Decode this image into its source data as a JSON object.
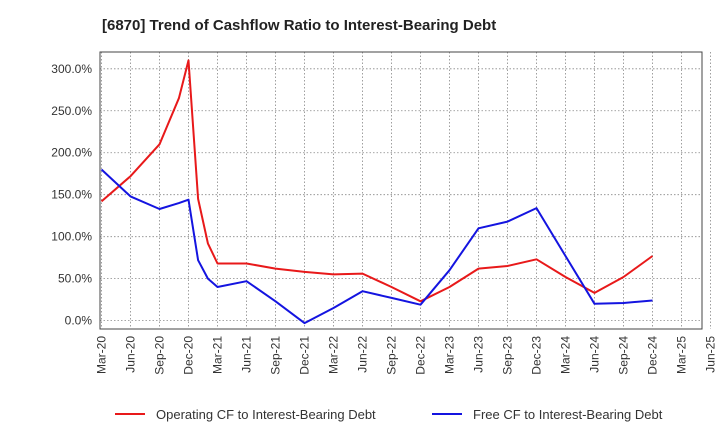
{
  "chart_data": {
    "type": "line",
    "title": "[6870]  Trend of Cashflow Ratio to Interest-Bearing Debt",
    "x_tick_labels": [
      "Mar-20",
      "Jun-20",
      "Sep-20",
      "Dec-20",
      "Mar-21",
      "Jun-21",
      "Sep-21",
      "Dec-21",
      "Mar-22",
      "Jun-22",
      "Sep-22",
      "Dec-22",
      "Mar-23",
      "Jun-23",
      "Sep-23",
      "Dec-23",
      "Mar-24",
      "Jun-24",
      "Sep-24",
      "Dec-24",
      "Mar-25",
      "Jun-25"
    ],
    "y_tick_labels": [
      "0.0%",
      "50.0%",
      "100.0%",
      "150.0%",
      "200.0%",
      "250.0%",
      "300.0%"
    ],
    "y_ticks": [
      0,
      50,
      100,
      150,
      200,
      250,
      300
    ],
    "ylim": [
      -10,
      320
    ],
    "grid": true,
    "legend_position": "bottom",
    "series": [
      {
        "name": "Operating CF to Interest-Bearing Debt",
        "color": "#e8191a",
        "points": [
          {
            "x": 0,
            "y": 142
          },
          {
            "x": 1,
            "y": 172
          },
          {
            "x": 2,
            "y": 210
          },
          {
            "x": 2.67,
            "y": 265
          },
          {
            "x": 3,
            "y": 310
          },
          {
            "x": 3.33,
            "y": 145
          },
          {
            "x": 3.67,
            "y": 92
          },
          {
            "x": 4,
            "y": 68
          },
          {
            "x": 5,
            "y": 68
          },
          {
            "x": 6,
            "y": 62
          },
          {
            "x": 7,
            "y": 58
          },
          {
            "x": 8,
            "y": 55
          },
          {
            "x": 9,
            "y": 56
          },
          {
            "x": 10,
            "y": 40
          },
          {
            "x": 11,
            "y": 23
          },
          {
            "x": 12,
            "y": 40
          },
          {
            "x": 13,
            "y": 62
          },
          {
            "x": 14,
            "y": 65
          },
          {
            "x": 15,
            "y": 73
          },
          {
            "x": 16,
            "y": 52
          },
          {
            "x": 17,
            "y": 33
          },
          {
            "x": 18,
            "y": 52
          },
          {
            "x": 19,
            "y": 77
          }
        ]
      },
      {
        "name": "Free CF to Interest-Bearing Debt",
        "color": "#1414e0",
        "points": [
          {
            "x": 0,
            "y": 180
          },
          {
            "x": 1,
            "y": 148
          },
          {
            "x": 2,
            "y": 133
          },
          {
            "x": 2.67,
            "y": 140
          },
          {
            "x": 3,
            "y": 144
          },
          {
            "x": 3.33,
            "y": 72
          },
          {
            "x": 3.67,
            "y": 50
          },
          {
            "x": 4,
            "y": 40
          },
          {
            "x": 5,
            "y": 47
          },
          {
            "x": 6,
            "y": 23
          },
          {
            "x": 7,
            "y": -3
          },
          {
            "x": 8,
            "y": 15
          },
          {
            "x": 9,
            "y": 35
          },
          {
            "x": 10,
            "y": 27
          },
          {
            "x": 11,
            "y": 19
          },
          {
            "x": 12,
            "y": 60
          },
          {
            "x": 13,
            "y": 110
          },
          {
            "x": 14,
            "y": 118
          },
          {
            "x": 15,
            "y": 134
          },
          {
            "x": 16,
            "y": 77
          },
          {
            "x": 17,
            "y": 20
          },
          {
            "x": 18,
            "y": 21
          },
          {
            "x": 19,
            "y": 24
          }
        ]
      }
    ]
  }
}
